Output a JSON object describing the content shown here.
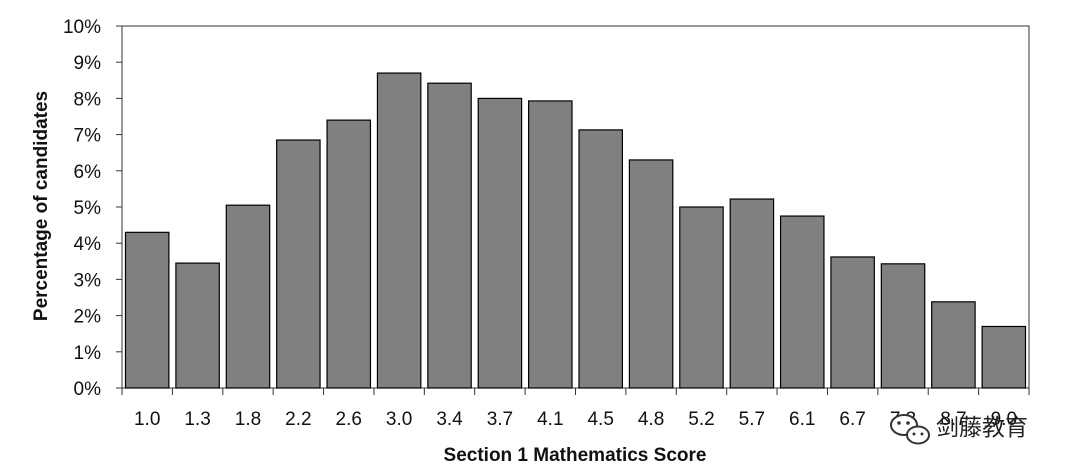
{
  "chart_data": {
    "type": "bar",
    "title": "",
    "xlabel": "Section 1 Mathematics Score",
    "ylabel": "Percentage of candidates",
    "categories": [
      "1.0",
      "1.3",
      "1.8",
      "2.2",
      "2.6",
      "3.0",
      "3.4",
      "3.7",
      "4.1",
      "4.5",
      "4.8",
      "5.2",
      "5.7",
      "6.1",
      "6.7",
      "7.3",
      "8.7",
      "9.0"
    ],
    "values": [
      4.3,
      3.45,
      5.05,
      6.85,
      7.4,
      8.7,
      8.42,
      8.0,
      7.93,
      7.13,
      6.3,
      5.0,
      5.22,
      4.75,
      3.62,
      3.43,
      2.38,
      1.7
    ],
    "ylim": [
      0,
      10
    ],
    "yticks": [
      0,
      1,
      2,
      3,
      4,
      5,
      6,
      7,
      8,
      9,
      10
    ],
    "ytick_labels": [
      "0%",
      "1%",
      "2%",
      "3%",
      "4%",
      "5%",
      "6%",
      "7%",
      "8%",
      "9%",
      "10%"
    ],
    "bar_color": "#808080",
    "bar_edge_color": "#000000",
    "grid": false,
    "legend": "none"
  },
  "watermark": {
    "text": "剑藤教育",
    "icon": "wechat-icon"
  }
}
